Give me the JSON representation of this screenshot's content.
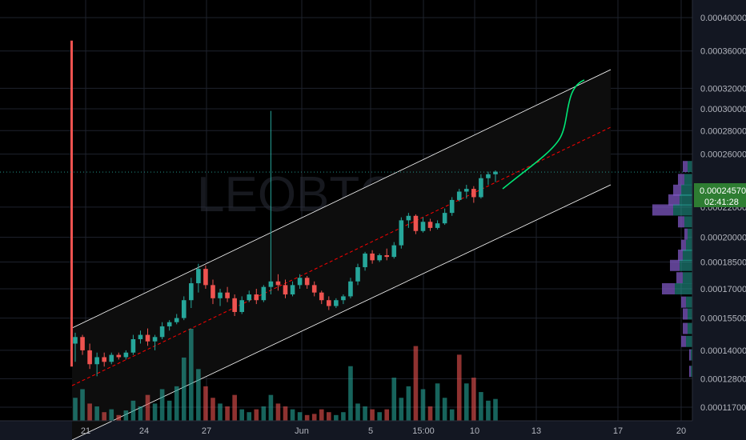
{
  "chart_data": {
    "type": "candlestick",
    "symbol_watermark": "LEOBTC",
    "colors": {
      "background": "#131722",
      "plot_background": "#000000",
      "up": "#26a69a",
      "down": "#ef5350",
      "up_volume": "#26a69a",
      "down_volume": "#ef5350",
      "channel": "#ffffff",
      "median_line": "#ff0000",
      "projection": "#00e676",
      "last_price_tag": "#2e7d32"
    },
    "y_axis": {
      "ticks": [
        "0.00040000",
        "0.00036000",
        "0.00032000",
        "0.00030000",
        "0.00028000",
        "0.00026000",
        "0.00022000",
        "0.00020000",
        "0.00018500",
        "0.00017000",
        "0.00015500",
        "0.00014000",
        "0.00012800",
        "0.00011700"
      ],
      "tick_values": [
        0.0004,
        0.00036,
        0.00032,
        0.0003,
        0.00028,
        0.00026,
        0.00022,
        0.0002,
        0.000185,
        0.00017,
        0.000155,
        0.00014,
        0.000128,
        0.000117
      ],
      "scale": "log"
    },
    "x_axis": {
      "ticks": [
        "21",
        "24",
        "27",
        "Jun",
        "5",
        "15:00",
        "10",
        "13",
        "17",
        "20"
      ]
    },
    "last_price": {
      "value": "0.00024570",
      "countdown": "02:41:28"
    },
    "candles": [
      {
        "o": 0.000143,
        "h": 0.000148,
        "l": 0.000135,
        "c": 0.000146,
        "dir": "up"
      },
      {
        "o": 0.000146,
        "h": 0.000147,
        "l": 0.000138,
        "c": 0.00014,
        "dir": "down"
      },
      {
        "o": 0.00014,
        "h": 0.000143,
        "l": 0.000132,
        "c": 0.000134,
        "dir": "down"
      },
      {
        "o": 0.000134,
        "h": 0.000139,
        "l": 0.000129,
        "c": 0.000137,
        "dir": "up"
      },
      {
        "o": 0.000137,
        "h": 0.000139,
        "l": 0.000133,
        "c": 0.000135,
        "dir": "down"
      },
      {
        "o": 0.000135,
        "h": 0.000139,
        "l": 0.000134,
        "c": 0.000138,
        "dir": "up"
      },
      {
        "o": 0.000138,
        "h": 0.000139,
        "l": 0.000136,
        "c": 0.000137,
        "dir": "down"
      },
      {
        "o": 0.000137,
        "h": 0.00014,
        "l": 0.000136,
        "c": 0.000139,
        "dir": "up"
      },
      {
        "o": 0.000139,
        "h": 0.000147,
        "l": 0.000138,
        "c": 0.000145,
        "dir": "up"
      },
      {
        "o": 0.000145,
        "h": 0.000149,
        "l": 0.000143,
        "c": 0.000147,
        "dir": "up"
      },
      {
        "o": 0.000147,
        "h": 0.00015,
        "l": 0.000142,
        "c": 0.000144,
        "dir": "down"
      },
      {
        "o": 0.000144,
        "h": 0.000147,
        "l": 0.00014,
        "c": 0.000146,
        "dir": "up"
      },
      {
        "o": 0.000146,
        "h": 0.000153,
        "l": 0.000145,
        "c": 0.000151,
        "dir": "up"
      },
      {
        "o": 0.000151,
        "h": 0.000154,
        "l": 0.000149,
        "c": 0.000153,
        "dir": "up"
      },
      {
        "o": 0.000153,
        "h": 0.000157,
        "l": 0.000152,
        "c": 0.000155,
        "dir": "up"
      },
      {
        "o": 0.000155,
        "h": 0.000166,
        "l": 0.000154,
        "c": 0.000164,
        "dir": "up"
      },
      {
        "o": 0.000164,
        "h": 0.000176,
        "l": 0.00016,
        "c": 0.000173,
        "dir": "up"
      },
      {
        "o": 0.000173,
        "h": 0.000184,
        "l": 0.000168,
        "c": 0.000181,
        "dir": "up"
      },
      {
        "o": 0.000181,
        "h": 0.000183,
        "l": 0.00017,
        "c": 0.000172,
        "dir": "down"
      },
      {
        "o": 0.000172,
        "h": 0.000175,
        "l": 0.000162,
        "c": 0.000165,
        "dir": "down"
      },
      {
        "o": 0.000165,
        "h": 0.00017,
        "l": 0.000161,
        "c": 0.000168,
        "dir": "up"
      },
      {
        "o": 0.000168,
        "h": 0.000171,
        "l": 0.000163,
        "c": 0.000165,
        "dir": "down"
      },
      {
        "o": 0.000165,
        "h": 0.000167,
        "l": 0.000156,
        "c": 0.000158,
        "dir": "down"
      },
      {
        "o": 0.000158,
        "h": 0.000166,
        "l": 0.000157,
        "c": 0.000164,
        "dir": "up"
      },
      {
        "o": 0.000164,
        "h": 0.000169,
        "l": 0.000163,
        "c": 0.000167,
        "dir": "up"
      },
      {
        "o": 0.000167,
        "h": 0.00017,
        "l": 0.000162,
        "c": 0.000164,
        "dir": "down"
      },
      {
        "o": 0.000164,
        "h": 0.000172,
        "l": 0.000163,
        "c": 0.000171,
        "dir": "up"
      },
      {
        "o": 0.000171,
        "h": 0.000298,
        "l": 0.000167,
        "c": 0.000174,
        "dir": "up"
      },
      {
        "o": 0.000174,
        "h": 0.000178,
        "l": 0.000169,
        "c": 0.000172,
        "dir": "down"
      },
      {
        "o": 0.000172,
        "h": 0.000175,
        "l": 0.000165,
        "c": 0.000167,
        "dir": "down"
      },
      {
        "o": 0.000167,
        "h": 0.000174,
        "l": 0.000166,
        "c": 0.000172,
        "dir": "up"
      },
      {
        "o": 0.000172,
        "h": 0.000178,
        "l": 0.00017,
        "c": 0.000176,
        "dir": "up"
      },
      {
        "o": 0.000176,
        "h": 0.000177,
        "l": 0.00017,
        "c": 0.000172,
        "dir": "down"
      },
      {
        "o": 0.000172,
        "h": 0.000174,
        "l": 0.000166,
        "c": 0.000168,
        "dir": "down"
      },
      {
        "o": 0.000168,
        "h": 0.000169,
        "l": 0.000162,
        "c": 0.000164,
        "dir": "down"
      },
      {
        "o": 0.000164,
        "h": 0.000166,
        "l": 0.000159,
        "c": 0.000161,
        "dir": "down"
      },
      {
        "o": 0.000161,
        "h": 0.000165,
        "l": 0.00016,
        "c": 0.000164,
        "dir": "up"
      },
      {
        "o": 0.000164,
        "h": 0.000167,
        "l": 0.000162,
        "c": 0.000166,
        "dir": "up"
      },
      {
        "o": 0.000166,
        "h": 0.000176,
        "l": 0.000165,
        "c": 0.000174,
        "dir": "up"
      },
      {
        "o": 0.000174,
        "h": 0.000184,
        "l": 0.000172,
        "c": 0.000182,
        "dir": "up"
      },
      {
        "o": 0.000182,
        "h": 0.000191,
        "l": 0.00018,
        "c": 0.00019,
        "dir": "up"
      },
      {
        "o": 0.00019,
        "h": 0.000192,
        "l": 0.000184,
        "c": 0.000186,
        "dir": "down"
      },
      {
        "o": 0.000186,
        "h": 0.00019,
        "l": 0.000185,
        "c": 0.000189,
        "dir": "up"
      },
      {
        "o": 0.000189,
        "h": 0.000193,
        "l": 0.000186,
        "c": 0.000188,
        "dir": "down"
      },
      {
        "o": 0.000188,
        "h": 0.000197,
        "l": 0.000187,
        "c": 0.000195,
        "dir": "up"
      },
      {
        "o": 0.000195,
        "h": 0.000213,
        "l": 0.000193,
        "c": 0.000211,
        "dir": "up"
      },
      {
        "o": 0.000211,
        "h": 0.000216,
        "l": 0.000206,
        "c": 0.000214,
        "dir": "up"
      },
      {
        "o": 0.000214,
        "h": 0.000215,
        "l": 0.000202,
        "c": 0.000204,
        "dir": "down"
      },
      {
        "o": 0.000204,
        "h": 0.000213,
        "l": 0.000203,
        "c": 0.00021,
        "dir": "up"
      },
      {
        "o": 0.00021,
        "h": 0.000212,
        "l": 0.000204,
        "c": 0.000206,
        "dir": "down"
      },
      {
        "o": 0.000206,
        "h": 0.000211,
        "l": 0.000205,
        "c": 0.000209,
        "dir": "up"
      },
      {
        "o": 0.000209,
        "h": 0.000219,
        "l": 0.000208,
        "c": 0.000216,
        "dir": "up"
      },
      {
        "o": 0.000216,
        "h": 0.000227,
        "l": 0.000214,
        "c": 0.000225,
        "dir": "up"
      },
      {
        "o": 0.000225,
        "h": 0.000233,
        "l": 0.000224,
        "c": 0.000231,
        "dir": "up"
      },
      {
        "o": 0.000231,
        "h": 0.000236,
        "l": 0.000226,
        "c": 0.000233,
        "dir": "up"
      },
      {
        "o": 0.000233,
        "h": 0.000235,
        "l": 0.000223,
        "c": 0.000227,
        "dir": "down"
      },
      {
        "o": 0.000227,
        "h": 0.000244,
        "l": 0.000226,
        "c": 0.000241,
        "dir": "up"
      },
      {
        "o": 0.000241,
        "h": 0.000246,
        "l": 0.000236,
        "c": 0.000244,
        "dir": "up"
      },
      {
        "o": 0.000244,
        "h": 0.000247,
        "l": 0.000238,
        "c": 0.000246,
        "dir": "up"
      }
    ],
    "volumes": [
      {
        "v": 40,
        "dir": "up"
      },
      {
        "v": 55,
        "dir": "up"
      },
      {
        "v": 30,
        "dir": "down"
      },
      {
        "v": 25,
        "dir": "up"
      },
      {
        "v": 15,
        "dir": "down"
      },
      {
        "v": 20,
        "dir": "up"
      },
      {
        "v": 10,
        "dir": "down"
      },
      {
        "v": 18,
        "dir": "up"
      },
      {
        "v": 35,
        "dir": "up"
      },
      {
        "v": 25,
        "dir": "up"
      },
      {
        "v": 45,
        "dir": "down"
      },
      {
        "v": 30,
        "dir": "up"
      },
      {
        "v": 55,
        "dir": "up"
      },
      {
        "v": 35,
        "dir": "up"
      },
      {
        "v": 60,
        "dir": "up"
      },
      {
        "v": 110,
        "dir": "up"
      },
      {
        "v": 160,
        "dir": "up"
      },
      {
        "v": 90,
        "dir": "up"
      },
      {
        "v": 60,
        "dir": "down"
      },
      {
        "v": 40,
        "dir": "down"
      },
      {
        "v": 30,
        "dir": "up"
      },
      {
        "v": 25,
        "dir": "down"
      },
      {
        "v": 45,
        "dir": "down"
      },
      {
        "v": 20,
        "dir": "up"
      },
      {
        "v": 15,
        "dir": "up"
      },
      {
        "v": 20,
        "dir": "down"
      },
      {
        "v": 25,
        "dir": "up"
      },
      {
        "v": 45,
        "dir": "up"
      },
      {
        "v": 30,
        "dir": "down"
      },
      {
        "v": 25,
        "dir": "down"
      },
      {
        "v": 20,
        "dir": "up"
      },
      {
        "v": 15,
        "dir": "up"
      },
      {
        "v": 10,
        "dir": "down"
      },
      {
        "v": 12,
        "dir": "down"
      },
      {
        "v": 20,
        "dir": "down"
      },
      {
        "v": 15,
        "dir": "down"
      },
      {
        "v": 10,
        "dir": "up"
      },
      {
        "v": 15,
        "dir": "up"
      },
      {
        "v": 95,
        "dir": "up"
      },
      {
        "v": 30,
        "dir": "up"
      },
      {
        "v": 25,
        "dir": "up"
      },
      {
        "v": 20,
        "dir": "down"
      },
      {
        "v": 15,
        "dir": "up"
      },
      {
        "v": 20,
        "dir": "down"
      },
      {
        "v": 75,
        "dir": "up"
      },
      {
        "v": 40,
        "dir": "up"
      },
      {
        "v": 60,
        "dir": "up"
      },
      {
        "v": 130,
        "dir": "down"
      },
      {
        "v": 55,
        "dir": "up"
      },
      {
        "v": 25,
        "dir": "down"
      },
      {
        "v": 65,
        "dir": "up"
      },
      {
        "v": 40,
        "dir": "up"
      },
      {
        "v": 20,
        "dir": "up"
      },
      {
        "v": 115,
        "dir": "down"
      },
      {
        "v": 65,
        "dir": "up"
      },
      {
        "v": 75,
        "dir": "down"
      },
      {
        "v": 50,
        "dir": "up"
      },
      {
        "v": 35,
        "dir": "up"
      },
      {
        "v": 38,
        "dir": "up"
      }
    ],
    "volume_profile_rows": [
      {
        "price": 0.00025,
        "up": 6,
        "down": 6
      },
      {
        "price": 0.00024,
        "up": 10,
        "down": 8
      },
      {
        "price": 0.000232,
        "up": 14,
        "down": 10
      },
      {
        "price": 0.000225,
        "up": 16,
        "down": 14
      },
      {
        "price": 0.000218,
        "up": 24,
        "down": 26
      },
      {
        "price": 0.00021,
        "up": 10,
        "down": 8
      },
      {
        "price": 0.000202,
        "up": 6,
        "down": 4
      },
      {
        "price": 0.000195,
        "up": 8,
        "down": 6
      },
      {
        "price": 0.000189,
        "up": 12,
        "down": 6
      },
      {
        "price": 0.000183,
        "up": 16,
        "down": 12
      },
      {
        "price": 0.000176,
        "up": 12,
        "down": 8
      },
      {
        "price": 0.00017,
        "up": 22,
        "down": 16
      },
      {
        "price": 0.000163,
        "up": 8,
        "down": 6
      },
      {
        "price": 0.000157,
        "up": 6,
        "down": 6
      },
      {
        "price": 0.00015,
        "up": 6,
        "down": 6
      },
      {
        "price": 0.000144,
        "up": 8,
        "down": 6
      },
      {
        "price": 0.000138,
        "up": 2,
        "down": 2
      },
      {
        "price": 0.000131,
        "up": 2,
        "down": 2
      }
    ]
  }
}
